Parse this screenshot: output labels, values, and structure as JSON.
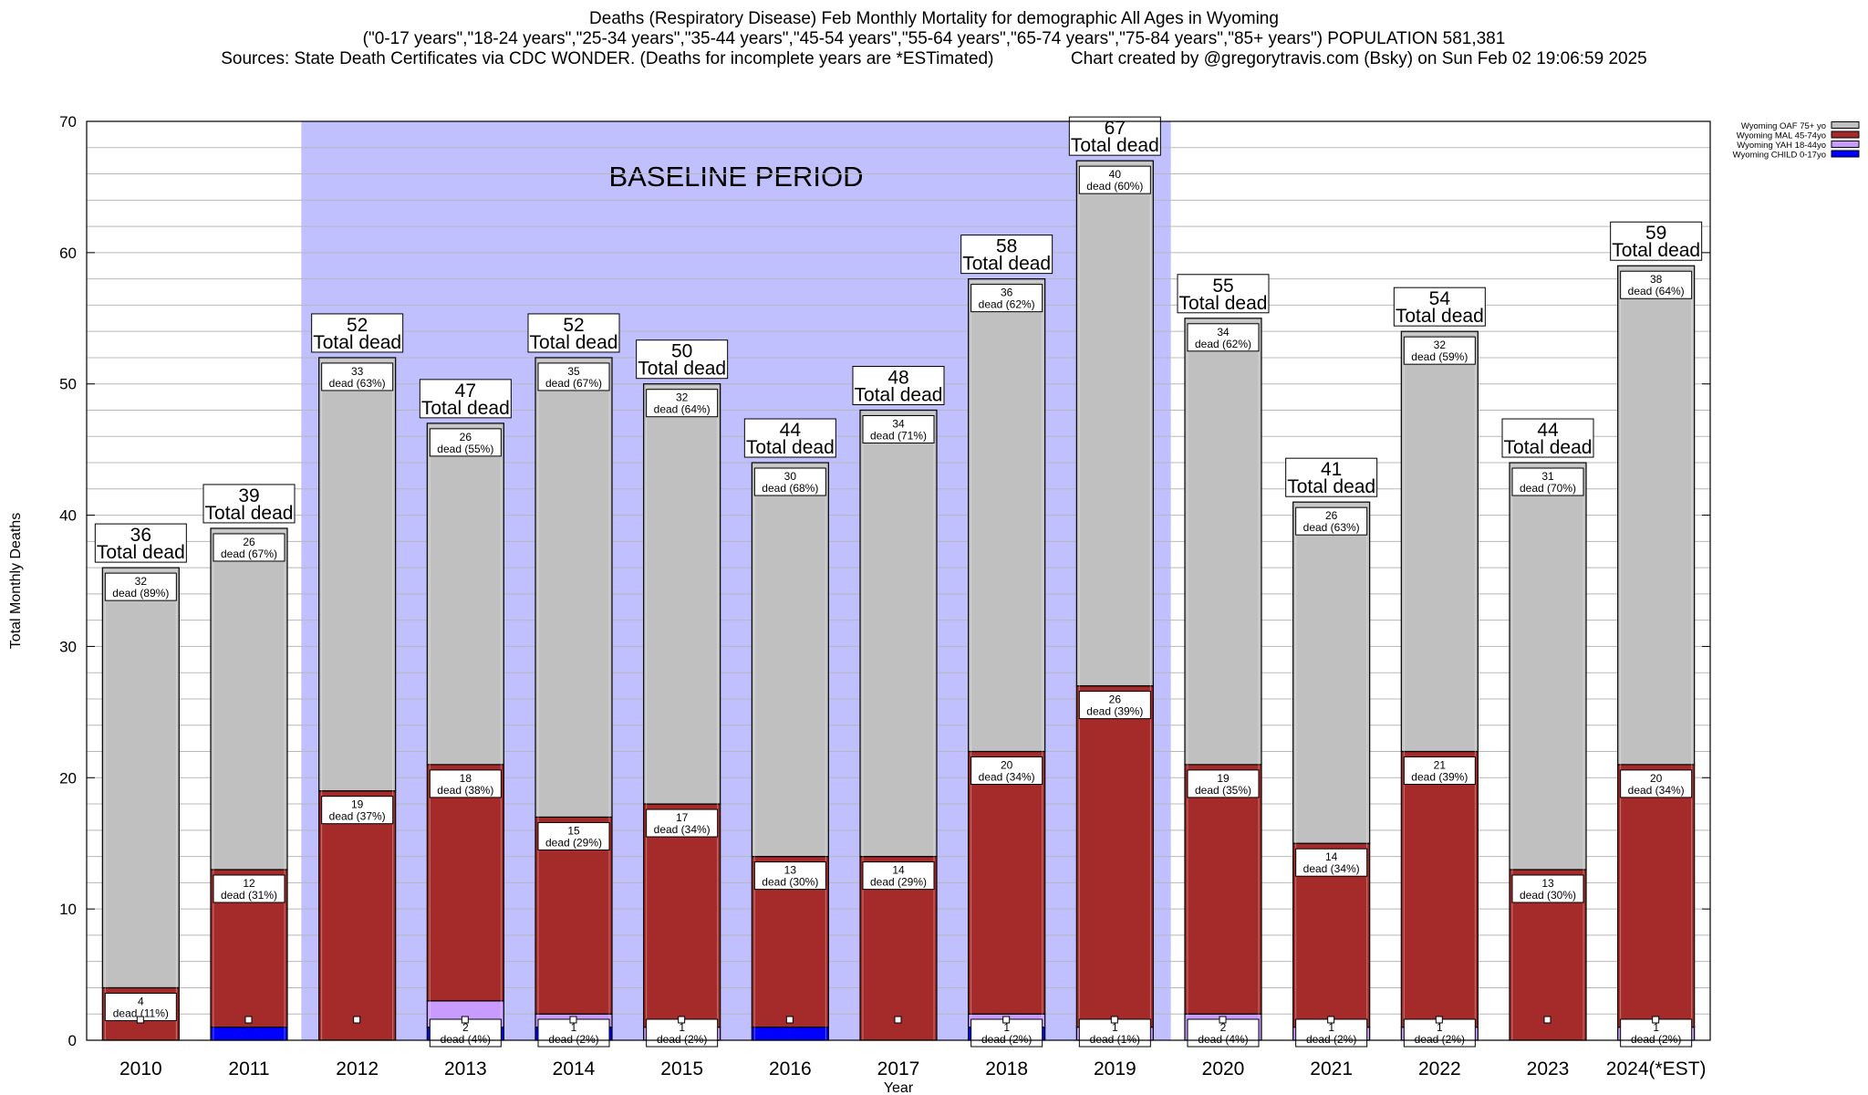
{
  "titles": {
    "line1": "Deaths (Respiratory Disease) Feb Monthly Mortality for demographic All Ages in Wyoming",
    "line2": "(\"0-17 years\",\"18-24 years\",\"25-34 years\",\"35-44 years\",\"45-54 years\",\"55-64 years\",\"65-74 years\",\"75-84 years\",\"85+ years\") POPULATION 581,381",
    "line3": "Sources: State Death Certificates via CDC WONDER. (Deaths for incomplete years are *ESTimated)                Chart created by @gregorytravis.com (Bsky) on Sun Feb 02 19:06:59 2025"
  },
  "colors": {
    "child": "#0000ff",
    "yah": "#c89cff",
    "mal": "#a52a2a",
    "oaf": "#c0c0c0",
    "baseline": "#c0c0ff"
  },
  "chart_data": {
    "type": "bar",
    "stacked": true,
    "xlabel": "Year",
    "ylabel": "Total Monthly Deaths",
    "ylim": [
      0,
      70
    ],
    "yticks": [
      0,
      10,
      20,
      30,
      40,
      50,
      60,
      70
    ],
    "grid": true,
    "legend_position": "top-right",
    "annotation": "BASELINE PERIOD",
    "baseline_period": [
      "2012",
      "2019"
    ],
    "total_label": "Total dead",
    "dead_label": "dead",
    "categories": [
      "2010",
      "2011",
      "2012",
      "2013",
      "2014",
      "2015",
      "2016",
      "2017",
      "2018",
      "2019",
      "2020",
      "2021",
      "2022",
      "2023",
      "2024(*EST)"
    ],
    "totals": [
      36,
      39,
      52,
      47,
      52,
      50,
      44,
      48,
      58,
      67,
      55,
      41,
      54,
      44,
      59
    ],
    "series": [
      {
        "key": "child",
        "name": "Wyoming CHILD 0-17yo",
        "values": [
          0,
          1,
          0,
          1,
          1,
          0,
          1,
          0,
          1,
          0,
          0,
          0,
          0,
          0,
          0
        ],
        "labels": [
          null,
          null,
          null,
          null,
          null,
          null,
          null,
          null,
          null,
          null,
          null,
          null,
          null,
          null,
          null
        ]
      },
      {
        "key": "yah",
        "name": "Wyoming YAH 18-44yo",
        "values": [
          0,
          0,
          0,
          2,
          1,
          1,
          0,
          0,
          1,
          1,
          2,
          1,
          1,
          0,
          1
        ],
        "labels": [
          null,
          null,
          null,
          "(4%)",
          "(2%)",
          "(2%)",
          null,
          null,
          "(2%)",
          "(1%)",
          "(4%)",
          "(2%)",
          "(2%)",
          null,
          "(2%)"
        ]
      },
      {
        "key": "mal",
        "name": "Wyoming MAL 45-74yo",
        "values": [
          4,
          12,
          19,
          18,
          15,
          17,
          13,
          14,
          20,
          26,
          19,
          14,
          21,
          13,
          20
        ],
        "labels": [
          "(11%)",
          "(31%)",
          "(37%)",
          "(38%)",
          "(29%)",
          "(34%)",
          "(30%)",
          "(29%)",
          "(34%)",
          "(39%)",
          "(35%)",
          "(34%)",
          "(39%)",
          "(30%)",
          "(34%)"
        ]
      },
      {
        "key": "oaf",
        "name": "Wyoming OAF 75+ yo",
        "values": [
          32,
          26,
          33,
          26,
          35,
          32,
          30,
          34,
          36,
          40,
          34,
          26,
          32,
          31,
          38
        ],
        "labels": [
          "(89%)",
          "(67%)",
          "(63%)",
          "(55%)",
          "(67%)",
          "(64%)",
          "(68%)",
          "(71%)",
          "(62%)",
          "(60%)",
          "(62%)",
          "(63%)",
          "(59%)",
          "(70%)",
          "(64%)"
        ]
      }
    ],
    "legend_order": [
      "oaf",
      "mal",
      "yah",
      "child"
    ]
  }
}
